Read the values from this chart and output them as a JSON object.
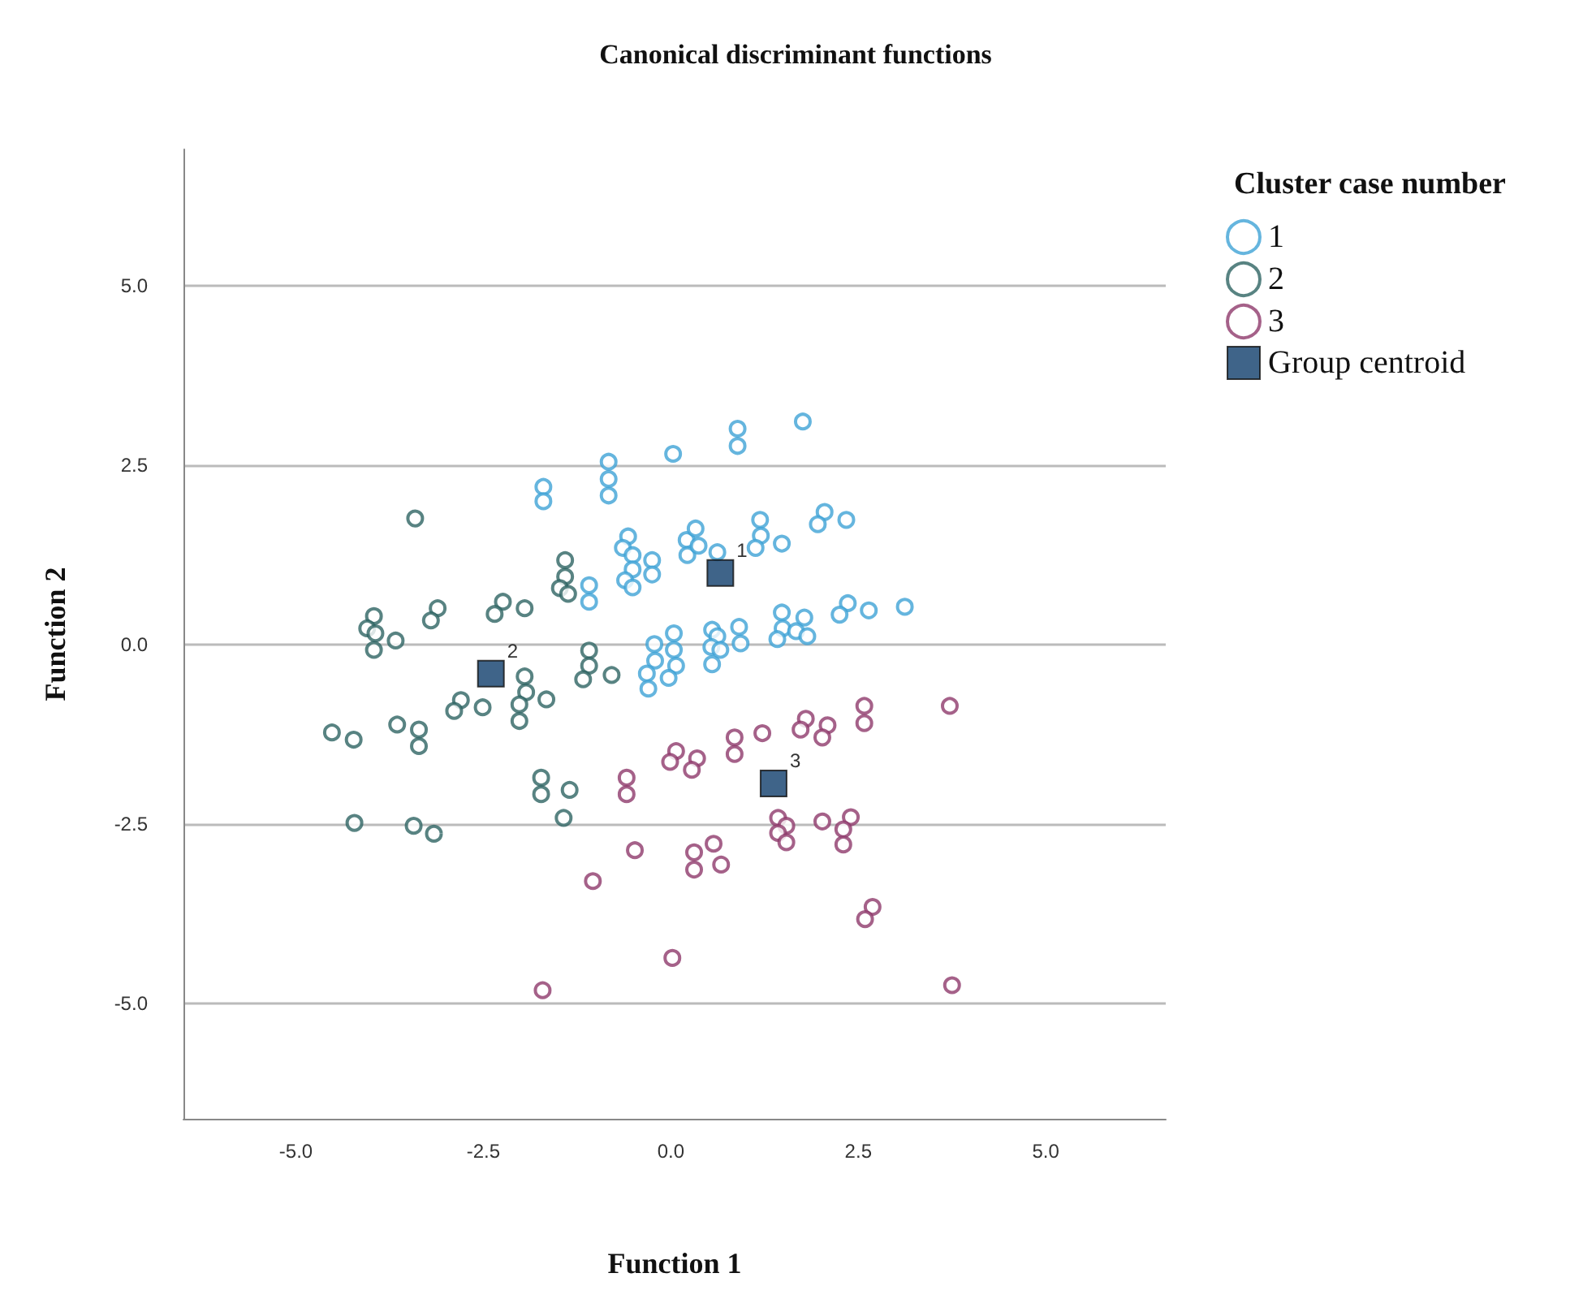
{
  "chart_data": {
    "type": "scatter",
    "title": "Canonical discriminant functions",
    "xlabel": "Function 1",
    "ylabel": "Function 2",
    "legend_title": "Cluster case number",
    "legend": "top right",
    "grid": "y",
    "xlim": [
      -6.5,
      6.6
    ],
    "ylim": [
      -6.6,
      6.9
    ],
    "xticks": [
      {
        "value": -5,
        "label": "-5.0"
      },
      {
        "value": -2.5,
        "label": "-2.5"
      },
      {
        "value": 0,
        "label": "0.0"
      },
      {
        "value": 2.5,
        "label": "2.5"
      },
      {
        "value": 5,
        "label": "5.0"
      }
    ],
    "yticks": [
      {
        "value": -5,
        "label": "-5.0"
      },
      {
        "value": -2.5,
        "label": "-2.5"
      },
      {
        "value": 0,
        "label": "0.0"
      },
      {
        "value": 2.5,
        "label": "2.5"
      },
      {
        "value": 5,
        "label": "5.0"
      }
    ],
    "series": [
      {
        "name": "1",
        "color": "#3fa3d6",
        "marker": "circle",
        "x": [
          -1.7,
          -1.7,
          -0.83,
          -0.83,
          -0.83,
          0.03,
          -0.57,
          -0.64,
          -0.51,
          -0.51,
          -0.61,
          -0.51,
          -0.25,
          -0.25,
          -1.09,
          -1.09,
          0.21,
          0.22,
          -0.22,
          0.04,
          0.04,
          -0.21,
          0.07,
          -0.32,
          -0.03,
          -0.3,
          0.89,
          0.89,
          1.76,
          0.33,
          0.37,
          0.62,
          1.19,
          1.2,
          1.13,
          1.48,
          2.05,
          1.96,
          2.34,
          1.48,
          1.49,
          1.42,
          1.78,
          1.67,
          1.82,
          2.36,
          2.25,
          2.64,
          3.12,
          0.55,
          0.62,
          0.54,
          0.66,
          0.55,
          0.91,
          0.93
        ],
        "values": [
          2.2,
          2.0,
          2.55,
          2.31,
          2.08,
          2.66,
          1.51,
          1.35,
          1.25,
          1.05,
          0.9,
          0.8,
          1.18,
          0.98,
          0.83,
          0.6,
          1.46,
          1.25,
          0.01,
          0.16,
          -0.07,
          -0.22,
          -0.29,
          -0.4,
          -0.46,
          -0.61,
          3.01,
          2.77,
          3.11,
          1.62,
          1.38,
          1.29,
          1.74,
          1.52,
          1.35,
          1.41,
          1.85,
          1.68,
          1.74,
          0.45,
          0.23,
          0.08,
          0.38,
          0.19,
          0.12,
          0.58,
          0.42,
          0.48,
          0.53,
          0.21,
          0.12,
          -0.03,
          -0.07,
          -0.27,
          0.25,
          0.02
        ]
      },
      {
        "name": "2",
        "color": "#2e6463",
        "marker": "circle",
        "x": [
          -3.41,
          -1.41,
          -1.41,
          -1.48,
          -1.37,
          -2.24,
          -2.35,
          -1.95,
          -3.11,
          -3.2,
          -3.96,
          -4.05,
          -3.94,
          -3.96,
          -3.67,
          -1.09,
          -1.09,
          -1.17,
          -0.79,
          -1.95,
          -1.93,
          -2.02,
          -2.02,
          -1.66,
          -2.51,
          -2.8,
          -2.89,
          -3.65,
          -3.36,
          -3.36,
          -4.52,
          -4.23,
          -1.73,
          -1.73,
          -1.35,
          -1.43,
          -4.22,
          -3.43,
          -3.16
        ],
        "values": [
          1.76,
          1.18,
          0.95,
          0.79,
          0.71,
          0.6,
          0.43,
          0.51,
          0.51,
          0.34,
          0.4,
          0.23,
          0.16,
          -0.07,
          0.06,
          -0.08,
          -0.29,
          -0.48,
          -0.42,
          -0.44,
          -0.66,
          -0.83,
          -1.06,
          -0.76,
          -0.87,
          -0.77,
          -0.92,
          -1.11,
          -1.18,
          -1.41,
          -1.22,
          -1.32,
          -1.85,
          -2.08,
          -2.02,
          -2.41,
          -2.48,
          -2.52,
          -2.63
        ]
      },
      {
        "name": "3",
        "color": "#8e3a6c",
        "marker": "circle",
        "x": [
          -0.59,
          -0.59,
          -0.48,
          -1.04,
          -1.71,
          0.02,
          0.07,
          -0.01,
          0.35,
          0.28,
          0.85,
          0.85,
          1.22,
          1.8,
          1.73,
          2.09,
          2.02,
          2.58,
          2.58,
          3.72,
          1.43,
          1.54,
          1.43,
          1.54,
          2.02,
          2.4,
          2.3,
          2.3,
          0.57,
          0.31,
          0.31,
          0.67,
          2.69,
          2.59,
          3.75
        ],
        "values": [
          -1.85,
          -2.08,
          -2.86,
          -3.29,
          -4.81,
          -4.36,
          -1.48,
          -1.63,
          -1.58,
          -1.74,
          -1.29,
          -1.52,
          -1.23,
          -1.03,
          -1.18,
          -1.12,
          -1.29,
          -0.85,
          -1.09,
          -0.85,
          -2.41,
          -2.52,
          -2.62,
          -2.75,
          -2.46,
          -2.4,
          -2.57,
          -2.78,
          -2.77,
          -2.89,
          -3.13,
          -3.06,
          -3.65,
          -3.82,
          -4.74
        ]
      },
      {
        "name": "Group centroid",
        "color": "#0f3d6b",
        "marker": "square",
        "x": [
          0.66,
          -2.4,
          1.37
        ],
        "values": [
          1.0,
          -0.4,
          -1.93
        ]
      }
    ],
    "annotations": [
      {
        "text": "1",
        "x": 0.66,
        "y": 1.0
      },
      {
        "text": "2",
        "x": -2.4,
        "y": -0.4
      },
      {
        "text": "3",
        "x": 1.37,
        "y": -1.93
      }
    ]
  }
}
